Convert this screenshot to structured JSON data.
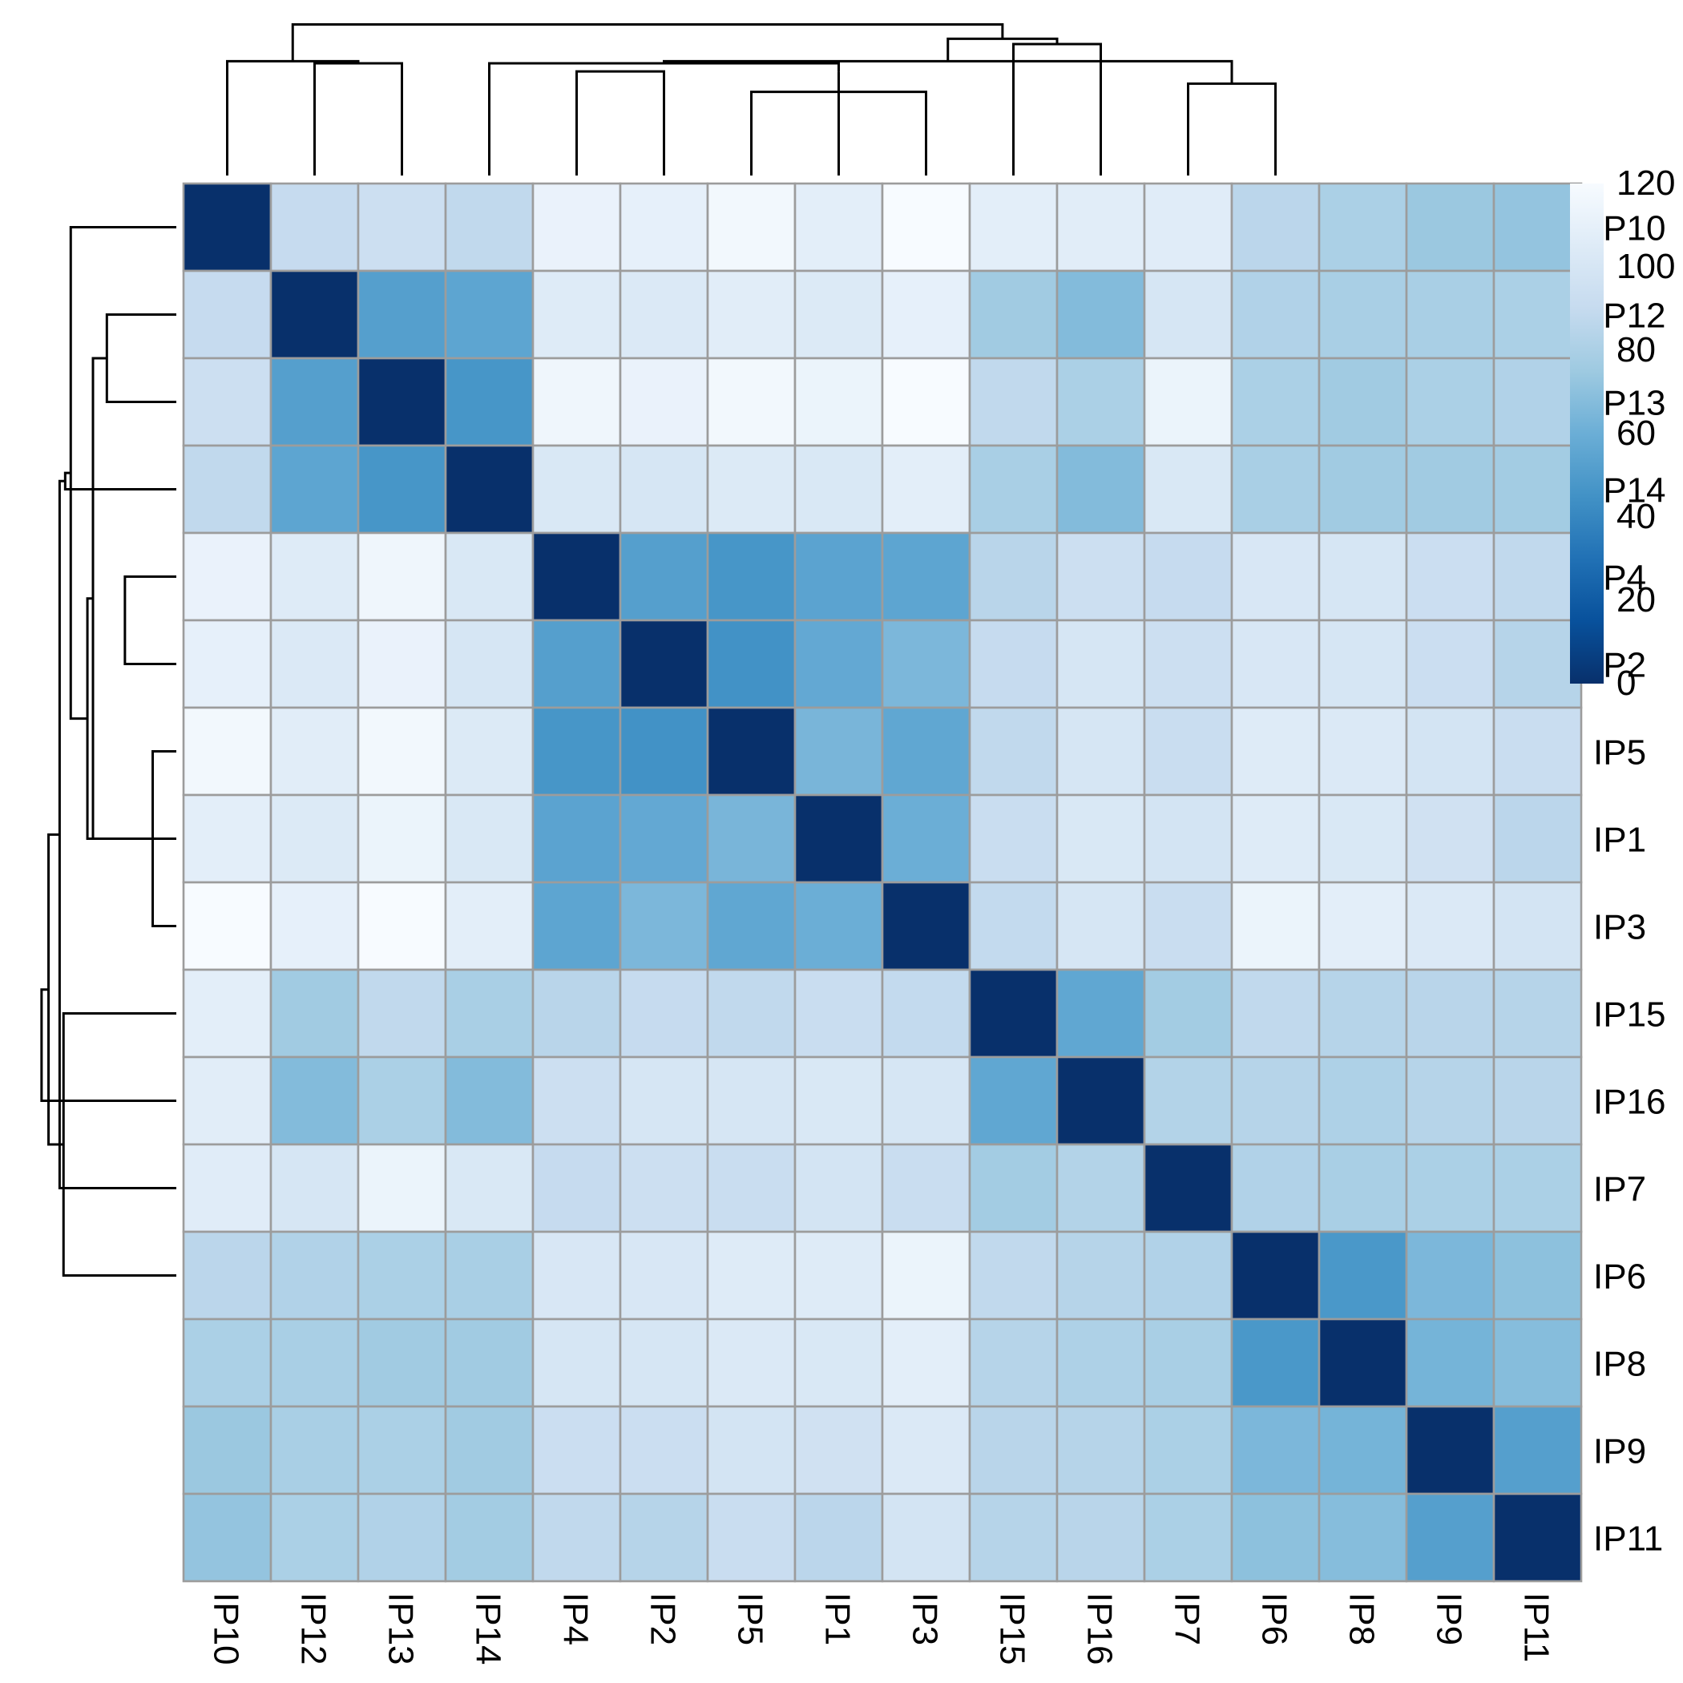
{
  "chart_data": {
    "type": "heatmap",
    "title": "",
    "labels": [
      "IP10",
      "IP12",
      "IP13",
      "IP14",
      "IP4",
      "IP2",
      "IP5",
      "IP1",
      "IP3",
      "IP15",
      "IP16",
      "IP7",
      "IP6",
      "IP8",
      "IP9",
      "IP11"
    ],
    "values": [
      [
        0,
        90,
        94,
        88,
        112,
        110,
        117,
        108,
        120,
        108,
        107,
        106,
        86,
        80,
        74,
        72
      ],
      [
        90,
        0,
        52,
        55,
        105,
        103,
        107,
        104,
        110,
        76,
        67,
        100,
        82,
        79,
        79,
        80
      ],
      [
        94,
        52,
        0,
        47,
        115,
        112,
        117,
        113,
        120,
        88,
        80,
        113,
        80,
        76,
        80,
        82
      ],
      [
        88,
        55,
        47,
        0,
        102,
        100,
        104,
        102,
        108,
        79,
        67,
        102,
        79,
        76,
        76,
        77
      ],
      [
        112,
        105,
        115,
        102,
        0,
        52,
        47,
        54,
        55,
        85,
        94,
        90,
        101,
        100,
        93,
        88
      ],
      [
        110,
        103,
        112,
        100,
        52,
        0,
        45,
        57,
        65,
        90,
        100,
        94,
        101,
        100,
        93,
        84
      ],
      [
        117,
        107,
        117,
        104,
        47,
        45,
        0,
        64,
        56,
        88,
        100,
        92,
        105,
        103,
        98,
        92
      ],
      [
        108,
        104,
        113,
        102,
        54,
        57,
        64,
        0,
        60,
        92,
        102,
        98,
        105,
        102,
        96,
        86
      ],
      [
        120,
        110,
        120,
        108,
        55,
        65,
        56,
        60,
        0,
        89,
        100,
        92,
        113,
        108,
        103,
        98
      ],
      [
        108,
        76,
        88,
        79,
        85,
        90,
        88,
        92,
        89,
        0,
        56,
        77,
        88,
        84,
        85,
        84
      ],
      [
        107,
        67,
        80,
        67,
        94,
        100,
        100,
        102,
        100,
        56,
        0,
        83,
        84,
        81,
        84,
        85
      ],
      [
        106,
        100,
        113,
        102,
        90,
        94,
        92,
        98,
        92,
        77,
        83,
        0,
        82,
        79,
        80,
        80
      ],
      [
        86,
        82,
        80,
        79,
        101,
        101,
        105,
        105,
        113,
        88,
        84,
        82,
        0,
        48,
        65,
        70
      ],
      [
        80,
        79,
        76,
        76,
        100,
        100,
        103,
        102,
        108,
        84,
        81,
        79,
        48,
        0,
        63,
        68
      ],
      [
        74,
        79,
        80,
        76,
        93,
        93,
        98,
        96,
        103,
        85,
        84,
        80,
        65,
        63,
        0,
        52
      ],
      [
        72,
        80,
        82,
        77,
        88,
        84,
        92,
        86,
        98,
        84,
        85,
        80,
        70,
        68,
        52,
        0
      ]
    ],
    "scale": {
      "min": 0,
      "max": 120,
      "ticks": [
        "0",
        "20",
        "40",
        "60",
        "80",
        "100",
        "120"
      ],
      "colors": [
        "#08306b",
        "#08519c",
        "#2171b5",
        "#4292c6",
        "#6baed6",
        "#9ecae1",
        "#c6dbef",
        "#deebf7",
        "#f7fbff"
      ]
    },
    "grid": true,
    "legend": "top-right",
    "row_dendrogram": {
      "merges": [
        [
          [
            6
          ],
          [
            8
          ],
          1
        ],
        [
          [
            4
          ],
          [
            5
          ],
          2
        ],
        [
          [
            3
          ],
          [
            7
          ],
          3
        ],
        [
          [
            2
          ],
          [
            1
          ],
          4
        ],
        [
          [
            1
          ],
          [
            0
          ],
          5
        ],
        [
          [
            2
          ],
          [
            6
          ],
          6
        ],
        [
          [
            8
          ],
          [
            7
          ],
          7
        ],
        [
          [
            4
          ],
          [
            5
          ],
          8
        ],
        [
          [
            11
          ],
          [
            12
          ],
          9
        ],
        [
          [
            6
          ],
          [
            11
          ],
          10
        ],
        [
          [
            9
          ],
          [
            10
          ],
          11
        ],
        [
          [
            9
          ],
          [
            12
          ],
          12
        ],
        [
          [
            6
          ],
          [
            9
          ],
          13
        ],
        [
          [
            0
          ],
          [
            8
          ],
          14
        ],
        [
          [
            0
          ],
          [
            6
          ],
          15
        ]
      ],
      "heights": [
        8.5,
        18.5,
        40,
        25,
        38,
        30,
        32,
        47,
        46,
        42,
        48.5,
        40.6,
        50.6,
        53.6,
        60
      ]
    },
    "col_dendrogram": {
      "heights": [
        41,
        51,
        55,
        55,
        56,
        74,
        51,
        62,
        45,
        56,
        64.4,
        67,
        69,
        78,
        80.5
      ]
    }
  }
}
